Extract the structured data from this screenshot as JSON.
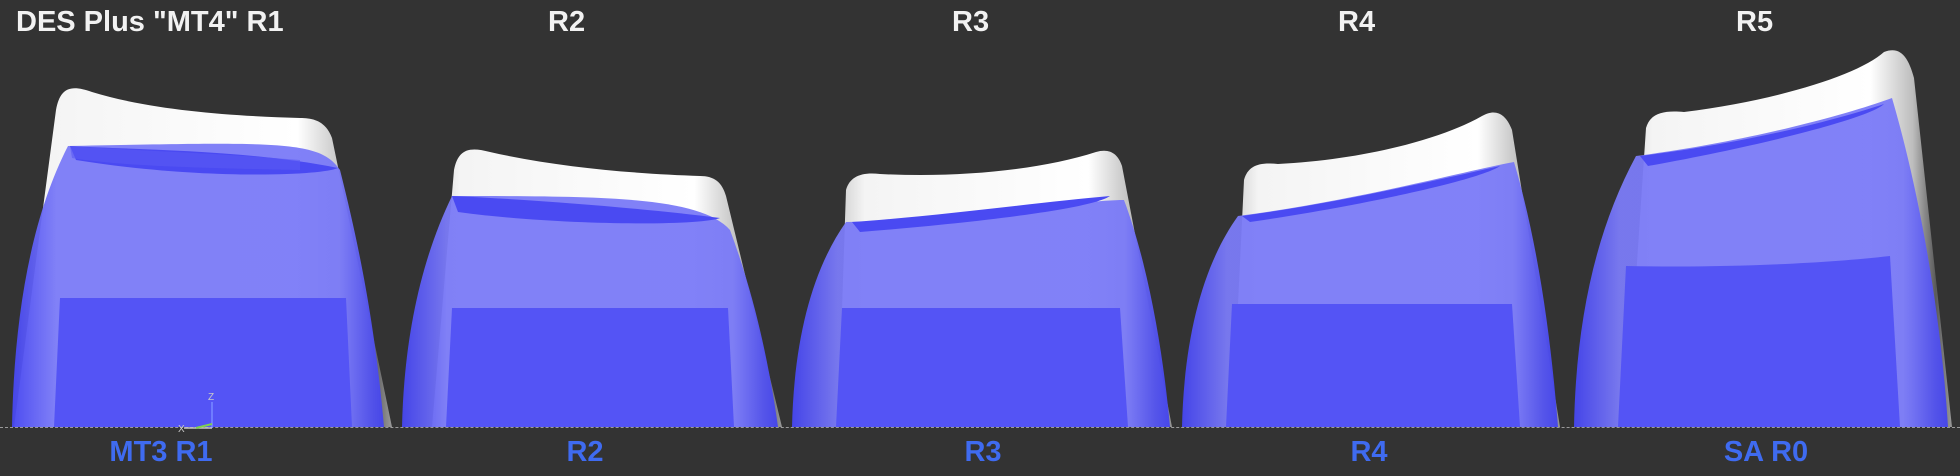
{
  "top_labels": {
    "r1": "DES Plus \"MT4\" R1",
    "r2": "R2",
    "r3": "R3",
    "r4": "R4",
    "r5": "R5"
  },
  "bottom_labels": {
    "r1": "MT3 R1",
    "r2": "R2",
    "r3": "R3",
    "r4": "R4",
    "r5": "SA R0"
  },
  "axis": {
    "z_label": "Z",
    "x_label": "X"
  },
  "colors": {
    "background": "#333333",
    "top_label": "#f2f2f2",
    "bottom_label": "#3f6bf0",
    "overlay_keycap": "#4f4ff5",
    "overlay_keycap_light": "#8a8af8",
    "base_keycap": "#e8e8e8",
    "axis_z": "#6f7cff",
    "axis_x": "#c8c8c8",
    "axis_y": "#7fd04f"
  }
}
